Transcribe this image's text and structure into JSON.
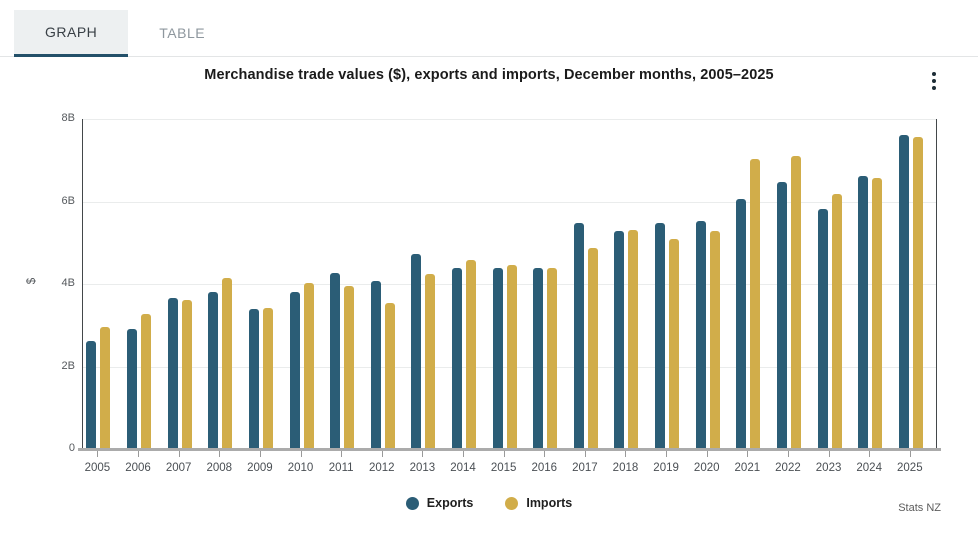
{
  "tabs": [
    {
      "label": "GRAPH",
      "active": true
    },
    {
      "label": "TABLE",
      "active": false
    }
  ],
  "menu": {
    "kebab_icon": "more-options"
  },
  "chart_data": {
    "type": "bar",
    "title": "Merchandise trade values ($), exports and imports, December months, 2005–2025",
    "ylabel": "$",
    "xlabel": "",
    "grid": true,
    "legend_position": "bottom",
    "ymax_billions": 8,
    "ytick_labels": [
      "0",
      "2B",
      "4B",
      "6B",
      "8B"
    ],
    "ytick_values_billions": [
      0,
      2,
      4,
      6,
      8
    ],
    "categories": [
      "2005",
      "2006",
      "2007",
      "2008",
      "2009",
      "2010",
      "2011",
      "2012",
      "2013",
      "2014",
      "2015",
      "2016",
      "2017",
      "2018",
      "2019",
      "2020",
      "2021",
      "2022",
      "2023",
      "2024",
      "2025"
    ],
    "series": [
      {
        "name": "Exports",
        "color": "#2b5d76",
        "values_billions": [
          2.61,
          2.92,
          3.65,
          3.8,
          3.39,
          3.8,
          4.26,
          4.07,
          4.72,
          4.38,
          4.4,
          4.38,
          5.48,
          5.28,
          5.49,
          5.52,
          6.05,
          6.48,
          5.82,
          6.62,
          7.62
        ]
      },
      {
        "name": "Imports",
        "color": "#d1ad4a",
        "values_billions": [
          2.95,
          3.28,
          3.62,
          4.14,
          3.42,
          4.02,
          3.94,
          3.55,
          4.25,
          4.58,
          4.45,
          4.4,
          4.88,
          5.3,
          5.1,
          5.28,
          7.04,
          7.1,
          6.18,
          6.58,
          7.56
        ]
      }
    ]
  },
  "footer": {
    "source": "Stats NZ"
  }
}
